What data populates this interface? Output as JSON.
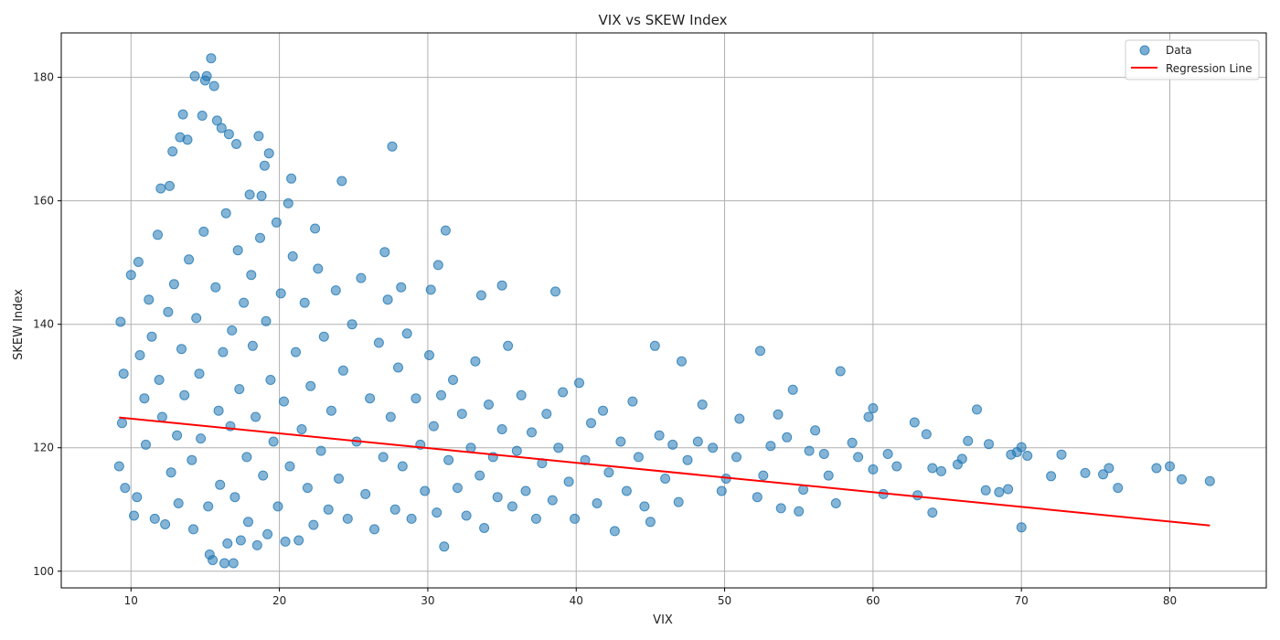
{
  "chart_data": {
    "type": "scatter",
    "title": "VIX vs SKEW Index",
    "xlabel": "VIX",
    "ylabel": "SKEW Index",
    "xlim": [
      5.3,
      86.5
    ],
    "ylim": [
      97.3,
      187.2
    ],
    "xticks": [
      10,
      20,
      30,
      40,
      50,
      60,
      70,
      80
    ],
    "yticks": [
      100,
      120,
      140,
      160,
      180
    ],
    "grid": true,
    "legend_position": "top-right",
    "legend": [
      "Data",
      "Regression Line"
    ],
    "colors": {
      "points": "#1f77b4",
      "line": "#ff0000",
      "grid": "#b0b0b0"
    },
    "series": [
      {
        "name": "Data",
        "kind": "scatter",
        "points": [
          [
            9.3,
            140.4
          ],
          [
            9.6,
            113.5
          ],
          [
            10.0,
            148.0
          ],
          [
            10.5,
            150.1
          ],
          [
            11.2,
            144.0
          ],
          [
            11.8,
            154.5
          ],
          [
            12.0,
            162.0
          ],
          [
            12.6,
            162.4
          ],
          [
            12.8,
            168.0
          ],
          [
            13.3,
            170.3
          ],
          [
            13.5,
            174.0
          ],
          [
            13.8,
            169.9
          ],
          [
            14.3,
            180.2
          ],
          [
            14.8,
            173.8
          ],
          [
            15.0,
            179.5
          ],
          [
            15.1,
            180.2
          ],
          [
            15.4,
            183.1
          ],
          [
            15.6,
            178.6
          ],
          [
            15.8,
            173.0
          ],
          [
            16.1,
            171.8
          ],
          [
            16.6,
            170.8
          ],
          [
            17.1,
            169.2
          ],
          [
            18.0,
            161.0
          ],
          [
            18.8,
            160.8
          ],
          [
            19.3,
            167.7
          ],
          [
            19.0,
            165.7
          ],
          [
            18.6,
            170.5
          ],
          [
            20.8,
            163.6
          ],
          [
            20.6,
            159.6
          ],
          [
            22.4,
            155.5
          ],
          [
            24.2,
            163.2
          ],
          [
            27.6,
            168.8
          ],
          [
            27.1,
            151.7
          ],
          [
            28.2,
            146.0
          ],
          [
            30.2,
            145.6
          ],
          [
            30.7,
            149.6
          ],
          [
            31.2,
            155.2
          ],
          [
            33.6,
            144.7
          ],
          [
            35.0,
            146.3
          ],
          [
            38.6,
            145.3
          ],
          [
            9.2,
            117.0
          ],
          [
            9.5,
            132.0
          ],
          [
            9.4,
            124.0
          ],
          [
            10.2,
            109.0
          ],
          [
            10.4,
            112.0
          ],
          [
            10.6,
            135.0
          ],
          [
            10.9,
            128.0
          ],
          [
            11.0,
            120.5
          ],
          [
            11.4,
            138.0
          ],
          [
            11.6,
            108.5
          ],
          [
            11.9,
            131.0
          ],
          [
            12.1,
            125.0
          ],
          [
            12.3,
            107.6
          ],
          [
            12.5,
            142.0
          ],
          [
            12.7,
            116.0
          ],
          [
            12.9,
            146.5
          ],
          [
            13.1,
            122.0
          ],
          [
            13.2,
            111.0
          ],
          [
            13.4,
            136.0
          ],
          [
            13.6,
            128.5
          ],
          [
            13.9,
            150.5
          ],
          [
            14.1,
            118.0
          ],
          [
            14.2,
            106.8
          ],
          [
            14.4,
            141.0
          ],
          [
            14.6,
            132.0
          ],
          [
            14.7,
            121.5
          ],
          [
            14.9,
            155.0
          ],
          [
            15.2,
            110.5
          ],
          [
            15.3,
            102.7
          ],
          [
            15.5,
            101.8
          ],
          [
            15.7,
            146.0
          ],
          [
            15.9,
            126.0
          ],
          [
            16.0,
            114.0
          ],
          [
            16.2,
            135.5
          ],
          [
            16.3,
            101.3
          ],
          [
            16.4,
            158.0
          ],
          [
            16.5,
            104.5
          ],
          [
            16.7,
            123.5
          ],
          [
            16.8,
            139.0
          ],
          [
            16.9,
            101.3
          ],
          [
            17.0,
            112.0
          ],
          [
            17.2,
            152.0
          ],
          [
            17.3,
            129.5
          ],
          [
            17.4,
            105.0
          ],
          [
            17.6,
            143.5
          ],
          [
            17.8,
            118.5
          ],
          [
            17.9,
            108.0
          ],
          [
            18.1,
            148.0
          ],
          [
            18.2,
            136.5
          ],
          [
            18.4,
            125.0
          ],
          [
            18.5,
            104.2
          ],
          [
            18.7,
            154.0
          ],
          [
            18.9,
            115.5
          ],
          [
            19.1,
            140.5
          ],
          [
            19.2,
            106.0
          ],
          [
            19.4,
            131.0
          ],
          [
            19.6,
            121.0
          ],
          [
            19.8,
            156.5
          ],
          [
            19.9,
            110.5
          ],
          [
            20.1,
            145.0
          ],
          [
            20.3,
            127.5
          ],
          [
            20.4,
            104.8
          ],
          [
            20.7,
            117.0
          ],
          [
            20.9,
            151.0
          ],
          [
            21.1,
            135.5
          ],
          [
            21.3,
            105.0
          ],
          [
            21.5,
            123.0
          ],
          [
            21.7,
            143.5
          ],
          [
            21.9,
            113.5
          ],
          [
            22.1,
            130.0
          ],
          [
            22.3,
            107.5
          ],
          [
            22.6,
            149.0
          ],
          [
            22.8,
            119.5
          ],
          [
            23.0,
            138.0
          ],
          [
            23.3,
            110.0
          ],
          [
            23.5,
            126.0
          ],
          [
            23.8,
            145.5
          ],
          [
            24.0,
            115.0
          ],
          [
            24.3,
            132.5
          ],
          [
            24.6,
            108.5
          ],
          [
            24.9,
            140.0
          ],
          [
            25.2,
            121.0
          ],
          [
            25.5,
            147.5
          ],
          [
            25.8,
            112.5
          ],
          [
            26.1,
            128.0
          ],
          [
            26.4,
            106.8
          ],
          [
            26.7,
            137.0
          ],
          [
            27.0,
            118.5
          ],
          [
            27.3,
            144.0
          ],
          [
            27.5,
            125.0
          ],
          [
            27.8,
            110.0
          ],
          [
            28.0,
            133.0
          ],
          [
            28.3,
            117.0
          ],
          [
            28.6,
            138.5
          ],
          [
            28.9,
            108.5
          ],
          [
            29.2,
            128.0
          ],
          [
            29.5,
            120.5
          ],
          [
            29.8,
            113.0
          ],
          [
            30.1,
            135.0
          ],
          [
            30.4,
            123.5
          ],
          [
            30.6,
            109.5
          ],
          [
            30.9,
            128.5
          ],
          [
            31.1,
            104.0
          ],
          [
            31.4,
            118.0
          ],
          [
            31.7,
            131.0
          ],
          [
            32.0,
            113.5
          ],
          [
            32.3,
            125.5
          ],
          [
            32.6,
            109.0
          ],
          [
            32.9,
            120.0
          ],
          [
            33.2,
            134.0
          ],
          [
            33.5,
            115.5
          ],
          [
            33.8,
            107.0
          ],
          [
            34.1,
            127.0
          ],
          [
            34.4,
            118.5
          ],
          [
            34.7,
            112.0
          ],
          [
            35.0,
            123.0
          ],
          [
            35.4,
            136.5
          ],
          [
            35.7,
            110.5
          ],
          [
            36.0,
            119.5
          ],
          [
            36.3,
            128.5
          ],
          [
            36.6,
            113.0
          ],
          [
            37.0,
            122.5
          ],
          [
            37.3,
            108.5
          ],
          [
            37.7,
            117.5
          ],
          [
            38.0,
            125.5
          ],
          [
            38.4,
            111.5
          ],
          [
            38.8,
            120.0
          ],
          [
            39.1,
            129.0
          ],
          [
            39.5,
            114.5
          ],
          [
            39.9,
            108.5
          ],
          [
            40.2,
            130.5
          ],
          [
            40.6,
            118.0
          ],
          [
            41.0,
            124.0
          ],
          [
            41.4,
            111.0
          ],
          [
            41.8,
            126.0
          ],
          [
            42.2,
            116.0
          ],
          [
            42.6,
            106.5
          ],
          [
            43.0,
            121.0
          ],
          [
            43.4,
            113.0
          ],
          [
            43.8,
            127.5
          ],
          [
            44.2,
            118.5
          ],
          [
            44.6,
            110.5
          ],
          [
            45.0,
            108.0
          ],
          [
            45.3,
            136.5
          ],
          [
            45.6,
            122.0
          ],
          [
            46.0,
            115.0
          ],
          [
            46.5,
            120.5
          ],
          [
            46.9,
            111.2
          ],
          [
            47.1,
            134.0
          ],
          [
            47.5,
            118.0
          ],
          [
            48.2,
            121.0
          ],
          [
            48.5,
            127.0
          ],
          [
            49.2,
            120.0
          ],
          [
            49.8,
            113.0
          ],
          [
            50.1,
            115.0
          ],
          [
            50.8,
            118.5
          ],
          [
            51.0,
            124.7
          ],
          [
            52.2,
            112.0
          ],
          [
            52.4,
            135.7
          ],
          [
            52.6,
            115.5
          ],
          [
            53.1,
            120.3
          ],
          [
            53.6,
            125.4
          ],
          [
            53.8,
            110.2
          ],
          [
            54.2,
            121.7
          ],
          [
            54.6,
            129.4
          ],
          [
            55.0,
            109.7
          ],
          [
            55.3,
            113.2
          ],
          [
            55.7,
            119.5
          ],
          [
            56.1,
            122.8
          ],
          [
            56.7,
            119.0
          ],
          [
            57.0,
            115.5
          ],
          [
            57.5,
            111.0
          ],
          [
            57.8,
            132.4
          ],
          [
            58.6,
            120.8
          ],
          [
            59.0,
            118.5
          ],
          [
            59.7,
            125.0
          ],
          [
            60.0,
            126.4
          ],
          [
            60.0,
            116.5
          ],
          [
            60.7,
            112.5
          ],
          [
            61.0,
            119.0
          ],
          [
            61.6,
            117.0
          ],
          [
            62.8,
            124.1
          ],
          [
            63.0,
            112.3
          ],
          [
            63.6,
            122.2
          ],
          [
            64.0,
            109.5
          ],
          [
            64.0,
            116.7
          ],
          [
            64.6,
            116.2
          ],
          [
            65.7,
            117.3
          ],
          [
            66.0,
            118.2
          ],
          [
            66.4,
            121.1
          ],
          [
            67.0,
            126.2
          ],
          [
            67.6,
            113.1
          ],
          [
            67.8,
            120.6
          ],
          [
            68.5,
            112.8
          ],
          [
            69.1,
            113.3
          ],
          [
            69.3,
            118.9
          ],
          [
            69.7,
            119.3
          ],
          [
            70.0,
            107.1
          ],
          [
            70.0,
            120.1
          ],
          [
            70.4,
            118.7
          ],
          [
            72.0,
            115.4
          ],
          [
            72.7,
            118.9
          ],
          [
            74.3,
            115.9
          ],
          [
            75.5,
            115.7
          ],
          [
            75.9,
            116.7
          ],
          [
            76.5,
            113.5
          ],
          [
            79.1,
            116.7
          ],
          [
            80.0,
            117.0
          ],
          [
            80.8,
            114.9
          ],
          [
            82.7,
            114.6
          ]
        ]
      },
      {
        "name": "Regression Line",
        "kind": "line",
        "x": [
          9.2,
          82.7
        ],
        "y": [
          124.9,
          107.4
        ]
      }
    ]
  }
}
